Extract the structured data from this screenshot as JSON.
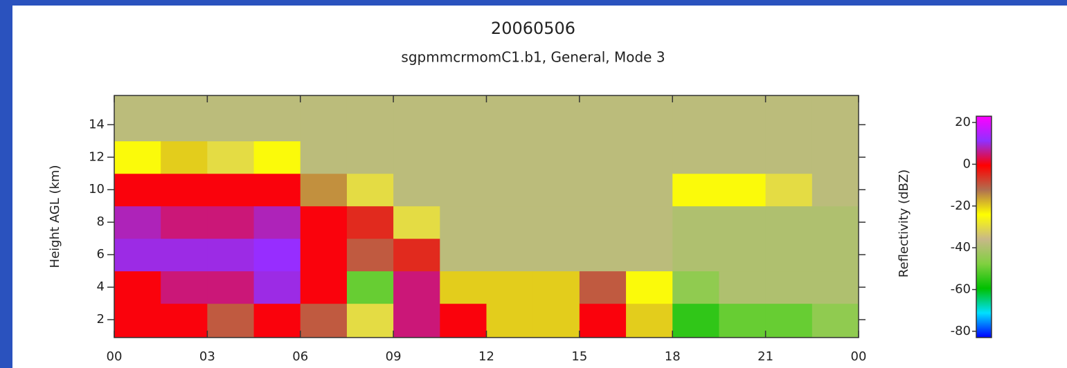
{
  "chart_data": {
    "type": "heatmap",
    "title": "20060506",
    "subtitle": "sgpmmcrmomC1.b1, General, Mode 3",
    "y_label": "Height AGL (km)",
    "colorbar_label": "Reflectivity (dBZ)",
    "x_edges": [
      0,
      1.5,
      3,
      4.5,
      6,
      7.5,
      9,
      10.5,
      12,
      13.5,
      15,
      16.5,
      18,
      19.5,
      21,
      22.5,
      24
    ],
    "y_edges": [
      0.9,
      3,
      5,
      7,
      9,
      11,
      13,
      15.8
    ],
    "z": [
      [
        0,
        0,
        10,
        8,
        0,
        -25,
        -38
      ],
      [
        0,
        5,
        10,
        5,
        0,
        -20,
        -38
      ],
      [
        -10,
        5,
        10,
        5,
        0,
        -30,
        -38
      ],
      [
        0,
        10,
        12,
        8,
        0,
        -25,
        -38
      ],
      [
        -10,
        0,
        0,
        0,
        -15,
        -38,
        -38
      ],
      [
        -30,
        -50,
        -10,
        -5,
        -30,
        -38,
        -38
      ],
      [
        5,
        5,
        -5,
        -30,
        -38,
        -38,
        -38
      ],
      [
        0,
        -20,
        -38,
        -38,
        -38,
        -38,
        -38
      ],
      [
        -20,
        -20,
        -38,
        -38,
        -38,
        -38,
        -38
      ],
      [
        -20,
        -20,
        -38,
        -38,
        -38,
        -38,
        -38
      ],
      [
        0,
        -10,
        -38,
        -38,
        -38,
        -38,
        -38
      ],
      [
        -20,
        -25,
        -38,
        -38,
        -38,
        -38,
        -38
      ],
      [
        -55,
        -45,
        -40,
        -40,
        -25,
        -38,
        -38
      ],
      [
        -50,
        -40,
        -40,
        -40,
        -25,
        -38,
        -38
      ],
      [
        -50,
        -40,
        -40,
        -40,
        -30,
        -38,
        -38
      ],
      [
        -45,
        -40,
        -40,
        -40,
        -38,
        -38,
        -38
      ]
    ],
    "xlim": [
      0,
      24
    ],
    "xticks": [
      {
        "value": 0,
        "label": "00"
      },
      {
        "value": 3,
        "label": "03"
      },
      {
        "value": 6,
        "label": "06"
      },
      {
        "value": 9,
        "label": "09"
      },
      12,
      15,
      18,
      21,
      {
        "value": 24,
        "label": "00"
      }
    ],
    "ylim": [
      0.9,
      15.8
    ],
    "yticks": [
      2,
      4,
      6,
      8,
      10,
      12,
      14
    ],
    "clim": [
      -83,
      23
    ],
    "cticks": [
      -80,
      -60,
      -40,
      -20,
      0,
      20
    ],
    "colorscale": [
      "#0000ff",
      "#00e0ff",
      "#00c000",
      "#80d040",
      "#c8b888",
      "#ffff00",
      "#b07050",
      "#ff0000",
      "#9030ff",
      "#ff00ff"
    ]
  }
}
